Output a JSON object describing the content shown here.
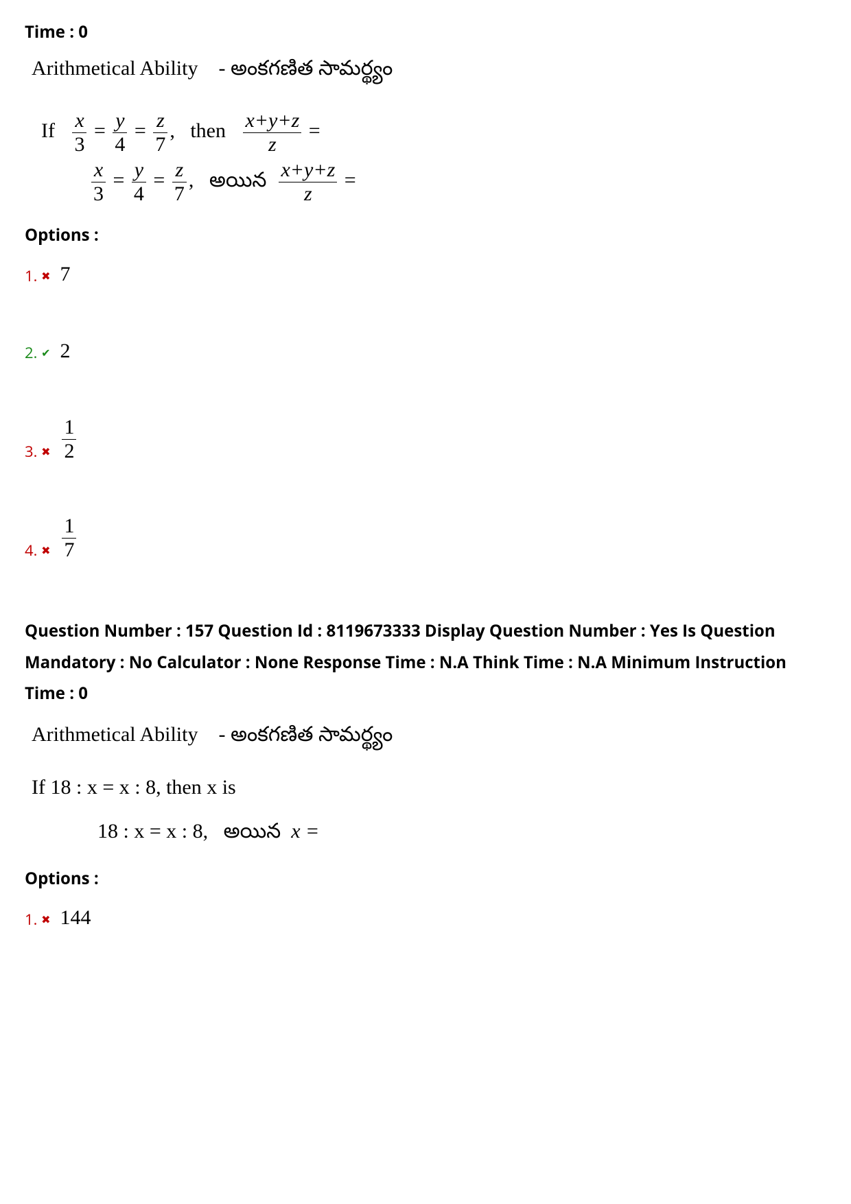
{
  "colors": {
    "text": "#000000",
    "wrong": "#c00000",
    "correct": "#1a8a1a",
    "background": "#ffffff"
  },
  "q1": {
    "time_label": "Time :",
    "time_value": "0",
    "section_title_en": "Arithmetical Ability",
    "section_title_sep": "-",
    "section_title_te": "అంకగణిత సామర్థ్యం",
    "if_word": "If",
    "frac1": {
      "n": "x",
      "d": "3"
    },
    "frac2": {
      "n": "y",
      "d": "4"
    },
    "frac3": {
      "n": "z",
      "d": "7"
    },
    "then_word": "then",
    "sum_frac": {
      "n": "x+y+z",
      "d": "z"
    },
    "equals": "=",
    "comma": ",",
    "ayina": "అయిన",
    "options_label": "Options :",
    "options": [
      {
        "num": "1.",
        "state": "wrong",
        "mark": "✖",
        "display": "plain",
        "value": "7"
      },
      {
        "num": "2.",
        "state": "correct",
        "mark": "✔",
        "display": "plain",
        "value": "2"
      },
      {
        "num": "3.",
        "state": "wrong",
        "mark": "✖",
        "display": "frac",
        "n": "1",
        "d": "2"
      },
      {
        "num": "4.",
        "state": "wrong",
        "mark": "✖",
        "display": "frac",
        "n": "1",
        "d": "7"
      }
    ]
  },
  "q2": {
    "meta": "Question Number : 157 Question Id : 8119673333 Display Question Number : Yes Is Question Mandatory : No Calculator : None Response Time : N.A Think Time : N.A Minimum Instruction Time : 0",
    "section_title_en": "Arithmetical Ability",
    "section_title_sep": "-",
    "section_title_te": "అంకగణిత సామర్థ్యం",
    "line1": "If 18 : x = x : 8,  then  x is",
    "line2_prefix": "18 : x = x : 8,",
    "ayina": "అయిన",
    "line2_suffix": "x =",
    "options_label": "Options :",
    "options": [
      {
        "num": "1.",
        "state": "wrong",
        "mark": "✖",
        "value": "144"
      }
    ]
  }
}
